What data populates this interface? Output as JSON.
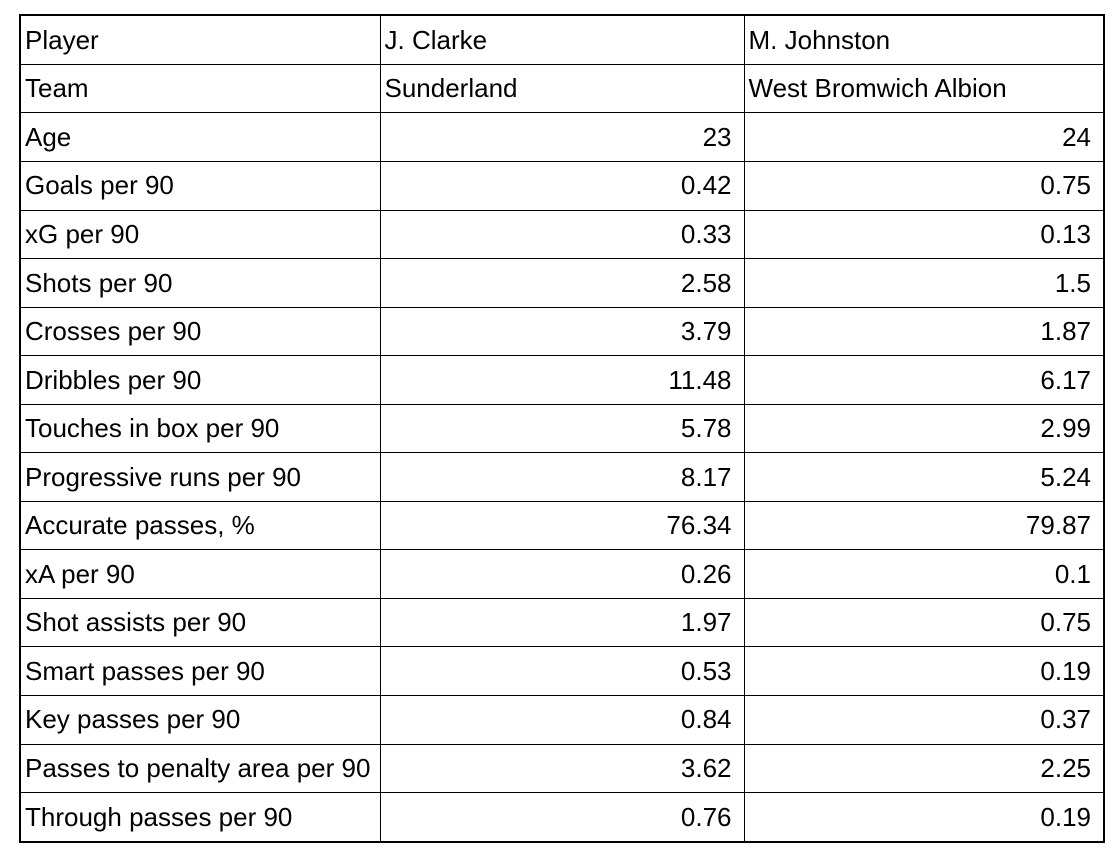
{
  "colors": {
    "background": "#ffffff",
    "text": "#000000",
    "border": "#000000"
  },
  "chart_data": {
    "type": "table",
    "columns": [
      "Player",
      "J. Clarke",
      "M. Johnston"
    ],
    "players": [
      {
        "name": "J. Clarke",
        "team": "Sunderland",
        "age": 23
      },
      {
        "name": "M. Johnston",
        "team": "West Bromwich Albion",
        "age": 24
      }
    ],
    "metrics": [
      "Goals per 90",
      "xG per 90",
      "Shots per 90",
      "Crosses per 90",
      "Dribbles per 90",
      "Touches in box per 90",
      "Progressive runs per 90",
      "Accurate passes, %",
      "xA per 90",
      "Shot assists per 90",
      "Smart passes per 90",
      "Key passes per 90",
      "Passes to penalty area per 90",
      "Through passes per 90"
    ],
    "series": [
      {
        "name": "J. Clarke",
        "values": [
          0.42,
          0.33,
          2.58,
          3.79,
          11.48,
          5.78,
          8.17,
          76.34,
          0.26,
          1.97,
          0.53,
          0.84,
          3.62,
          0.76
        ]
      },
      {
        "name": "M. Johnston",
        "values": [
          0.75,
          0.13,
          1.5,
          1.87,
          6.17,
          2.99,
          5.24,
          79.87,
          0.1,
          0.75,
          0.19,
          0.37,
          2.25,
          0.19
        ]
      }
    ],
    "rows": [
      {
        "label": "Player",
        "clarke": "J. Clarke",
        "johnston": "M. Johnston",
        "numeric": false
      },
      {
        "label": "Team",
        "clarke": "Sunderland",
        "johnston": "West Bromwich Albion",
        "numeric": false
      },
      {
        "label": "Age",
        "clarke": "23",
        "johnston": "24",
        "numeric": true
      },
      {
        "label": "Goals per 90",
        "clarke": "0.42",
        "johnston": "0.75",
        "numeric": true
      },
      {
        "label": "xG per 90",
        "clarke": "0.33",
        "johnston": "0.13",
        "numeric": true
      },
      {
        "label": "Shots per 90",
        "clarke": "2.58",
        "johnston": "1.5",
        "numeric": true
      },
      {
        "label": "Crosses per 90",
        "clarke": "3.79",
        "johnston": "1.87",
        "numeric": true
      },
      {
        "label": "Dribbles per 90",
        "clarke": "11.48",
        "johnston": "6.17",
        "numeric": true
      },
      {
        "label": "Touches in box per 90",
        "clarke": "5.78",
        "johnston": "2.99",
        "numeric": true
      },
      {
        "label": "Progressive runs per 90",
        "clarke": "8.17",
        "johnston": "5.24",
        "numeric": true
      },
      {
        "label": "Accurate passes, %",
        "clarke": "76.34",
        "johnston": "79.87",
        "numeric": true
      },
      {
        "label": "xA per 90",
        "clarke": "0.26",
        "johnston": "0.1",
        "numeric": true
      },
      {
        "label": "Shot assists per 90",
        "clarke": "1.97",
        "johnston": "0.75",
        "numeric": true
      },
      {
        "label": "Smart passes per 90",
        "clarke": "0.53",
        "johnston": "0.19",
        "numeric": true
      },
      {
        "label": "Key passes per 90",
        "clarke": "0.84",
        "johnston": "0.37",
        "numeric": true
      },
      {
        "label": "Passes to penalty area per 90",
        "clarke": "3.62",
        "johnston": "2.25",
        "numeric": true
      },
      {
        "label": "Through passes per 90",
        "clarke": "0.76",
        "johnston": "0.19",
        "numeric": true
      }
    ]
  }
}
